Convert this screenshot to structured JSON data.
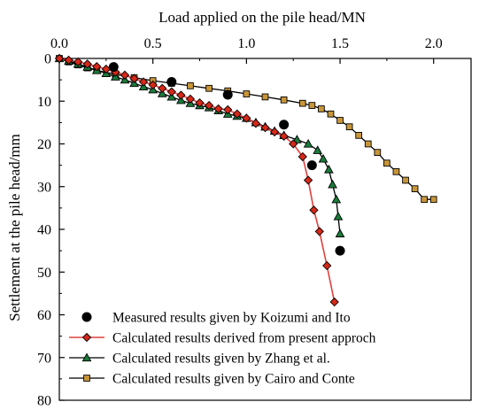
{
  "chart_data": {
    "type": "line",
    "xlabel": "Load applied on the pile head/MN",
    "ylabel": "Settlement at the pile head/mm",
    "xlim": [
      0,
      2.2
    ],
    "ylim": [
      0,
      80
    ],
    "y_inverted": true,
    "x_axis_position": "top",
    "xticks": [
      "0.0",
      "0.5",
      "1.0",
      "1.5",
      "2.0"
    ],
    "xtick_values": [
      0,
      0.5,
      1.0,
      1.5,
      2.0
    ],
    "yticks": [
      "0",
      "10",
      "20",
      "30",
      "40",
      "50",
      "60",
      "70",
      "80"
    ],
    "ytick_values": [
      0,
      10,
      20,
      30,
      40,
      50,
      60,
      70,
      80
    ],
    "grid": false,
    "legend_position": "bottom-left",
    "series": [
      {
        "name": "Measured results given by Koizumi and Ito",
        "marker": "circle",
        "line": false,
        "color": "#000000",
        "x": [
          0.29,
          0.6,
          0.9,
          1.2,
          1.35,
          1.5
        ],
        "y": [
          2.0,
          5.5,
          8.5,
          15.5,
          25.0,
          45.0
        ]
      },
      {
        "name": "Calculated results derived from present approch",
        "marker": "diamond",
        "line": true,
        "line_color": "#e0403c",
        "marker_fill": "#d62818",
        "x": [
          0.0,
          0.05,
          0.1,
          0.15,
          0.2,
          0.25,
          0.3,
          0.35,
          0.4,
          0.45,
          0.5,
          0.55,
          0.6,
          0.65,
          0.7,
          0.75,
          0.8,
          0.85,
          0.9,
          0.95,
          1.0,
          1.05,
          1.1,
          1.15,
          1.2,
          1.25,
          1.3,
          1.33,
          1.36,
          1.39,
          1.43,
          1.47
        ],
        "y": [
          0.0,
          0.4,
          0.8,
          1.3,
          1.9,
          2.5,
          3.2,
          3.9,
          4.7,
          5.5,
          6.2,
          7.0,
          7.8,
          8.6,
          9.5,
          10.4,
          11.0,
          11.8,
          12.0,
          13.0,
          14.0,
          15.2,
          16.2,
          17.2,
          18.2,
          20.0,
          23.0,
          28.5,
          35.5,
          40.5,
          48.5,
          57.0
        ]
      },
      {
        "name": "Calculated results given by Zhang et al.",
        "marker": "triangle",
        "line": true,
        "line_color": "#000000",
        "marker_fill": "#1a7a3a",
        "x": [
          0.0,
          0.05,
          0.1,
          0.15,
          0.2,
          0.25,
          0.3,
          0.35,
          0.4,
          0.45,
          0.5,
          0.55,
          0.6,
          0.65,
          0.7,
          0.75,
          0.8,
          0.85,
          0.9,
          0.95,
          1.0,
          1.05,
          1.1,
          1.15,
          1.2,
          1.27,
          1.33,
          1.38,
          1.41,
          1.44,
          1.46,
          1.48,
          1.49,
          1.5
        ],
        "y": [
          0.0,
          0.6,
          1.3,
          2.0,
          2.8,
          3.5,
          4.3,
          5.0,
          5.8,
          6.6,
          7.3,
          8.2,
          9.0,
          9.8,
          10.5,
          11.0,
          11.5,
          12.2,
          13.0,
          13.5,
          14.0,
          15.0,
          16.0,
          17.0,
          18.0,
          19.0,
          20.0,
          21.5,
          23.5,
          26.0,
          29.5,
          33.0,
          37.0,
          41.0
        ]
      },
      {
        "name": "Calculated results given by Cairo and Conte",
        "marker": "square",
        "line": true,
        "line_color": "#000000",
        "marker_fill": "#c8963a",
        "x": [
          0.0,
          0.05,
          0.1,
          0.15,
          0.2,
          0.3,
          0.4,
          0.5,
          0.6,
          0.7,
          0.8,
          0.9,
          1.0,
          1.1,
          1.2,
          1.3,
          1.35,
          1.4,
          1.45,
          1.5,
          1.55,
          1.6,
          1.65,
          1.7,
          1.75,
          1.8,
          1.85,
          1.9,
          1.95,
          2.0
        ],
        "y": [
          0.0,
          0.8,
          1.5,
          2.2,
          2.8,
          3.7,
          4.5,
          5.2,
          5.8,
          6.4,
          7.0,
          7.6,
          8.3,
          9.0,
          9.7,
          10.5,
          11.0,
          11.8,
          13.0,
          14.5,
          16.0,
          18.0,
          20.0,
          22.0,
          24.5,
          26.5,
          28.5,
          30.5,
          33.0,
          33.0
        ]
      }
    ]
  }
}
